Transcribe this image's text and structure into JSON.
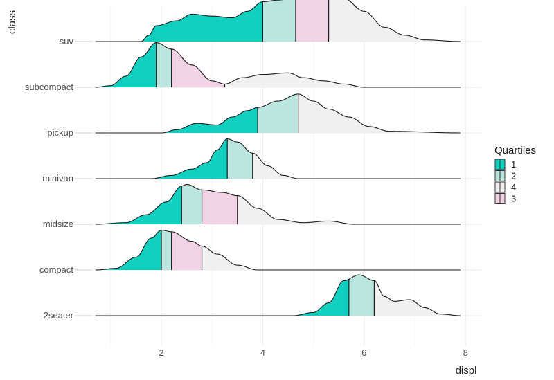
{
  "chart_data": {
    "type": "ridgeline-density",
    "title": "",
    "xlabel": "displ",
    "ylabel": "class",
    "xlim": [
      0.7,
      7.9
    ],
    "x_ticks": [
      2,
      4,
      6,
      8
    ],
    "x_tick_labels": [
      "2",
      "4",
      "6",
      "8"
    ],
    "grid": true,
    "legend": {
      "title": "Quartiles",
      "position": "right",
      "entries": [
        {
          "label": "1",
          "color": "#12D0C0"
        },
        {
          "label": "2",
          "color": "#BBE5DF"
        },
        {
          "label": "4",
          "color": "#F0F0F0"
        },
        {
          "label": "3",
          "color": "#F2D3E6"
        }
      ]
    },
    "categories": [
      "2seater",
      "compact",
      "midsize",
      "minivan",
      "pickup",
      "subcompact",
      "suv"
    ],
    "series": [
      {
        "name": "suv",
        "quartiles": [
          4.0,
          4.65,
          5.3
        ],
        "density": [
          [
            0.7,
            0
          ],
          [
            1.6,
            0
          ],
          [
            1.75,
            0.2
          ],
          [
            1.9,
            0.5
          ],
          [
            2.3,
            0.65
          ],
          [
            2.6,
            0.86
          ],
          [
            3.0,
            0.8
          ],
          [
            3.4,
            0.75
          ],
          [
            3.7,
            0.95
          ],
          [
            4.0,
            1.25
          ],
          [
            4.3,
            1.3
          ],
          [
            4.65,
            1.38
          ],
          [
            5.0,
            1.35
          ],
          [
            5.3,
            1.42
          ],
          [
            5.6,
            1.35
          ],
          [
            6.0,
            0.95
          ],
          [
            6.4,
            0.45
          ],
          [
            6.8,
            0.2
          ],
          [
            7.2,
            0.05
          ],
          [
            7.9,
            0
          ]
        ]
      },
      {
        "name": "subcompact",
        "quartiles": [
          1.9,
          2.2,
          3.25
        ],
        "density": [
          [
            0.7,
            0
          ],
          [
            1.0,
            0.05
          ],
          [
            1.3,
            0.35
          ],
          [
            1.6,
            0.95
          ],
          [
            1.9,
            1.4
          ],
          [
            2.2,
            1.2
          ],
          [
            2.6,
            0.7
          ],
          [
            3.0,
            0.2
          ],
          [
            3.25,
            0.1
          ],
          [
            3.6,
            0.3
          ],
          [
            4.0,
            0.4
          ],
          [
            4.5,
            0.45
          ],
          [
            4.8,
            0.3
          ],
          [
            5.2,
            0.2
          ],
          [
            5.6,
            0.1
          ],
          [
            6.0,
            0
          ],
          [
            7.9,
            0
          ]
        ]
      },
      {
        "name": "pickup",
        "quartiles": [
          3.9,
          4.7
        ],
        "density": [
          [
            0.7,
            0
          ],
          [
            2.0,
            0
          ],
          [
            2.3,
            0.1
          ],
          [
            2.7,
            0.3
          ],
          [
            3.1,
            0.25
          ],
          [
            3.4,
            0.5
          ],
          [
            3.7,
            0.7
          ],
          [
            3.9,
            0.8
          ],
          [
            4.3,
            1.0
          ],
          [
            4.7,
            1.22
          ],
          [
            5.0,
            1.0
          ],
          [
            5.3,
            0.75
          ],
          [
            5.7,
            0.5
          ],
          [
            6.1,
            0.2
          ],
          [
            6.5,
            0.05
          ],
          [
            7.9,
            0
          ]
        ]
      },
      {
        "name": "minivan",
        "quartiles": [
          3.3,
          3.8
        ],
        "density": [
          [
            0.7,
            0
          ],
          [
            1.8,
            0
          ],
          [
            2.2,
            0.1
          ],
          [
            2.6,
            0.3
          ],
          [
            2.9,
            0.5
          ],
          [
            3.1,
            0.9
          ],
          [
            3.3,
            1.25
          ],
          [
            3.5,
            1.15
          ],
          [
            3.8,
            0.8
          ],
          [
            4.1,
            0.4
          ],
          [
            4.4,
            0.1
          ],
          [
            4.7,
            0
          ],
          [
            7.9,
            0
          ]
        ]
      },
      {
        "name": "midsize",
        "quartiles": [
          2.4,
          2.8,
          3.5
        ],
        "density": [
          [
            0.7,
            0
          ],
          [
            1.3,
            0.05
          ],
          [
            1.7,
            0.3
          ],
          [
            2.1,
            0.7
          ],
          [
            2.4,
            1.2
          ],
          [
            2.5,
            1.25
          ],
          [
            2.8,
            1.08
          ],
          [
            3.2,
            1.0
          ],
          [
            3.5,
            0.9
          ],
          [
            3.9,
            0.5
          ],
          [
            4.3,
            0.15
          ],
          [
            4.8,
            0.05
          ],
          [
            5.3,
            0.1
          ],
          [
            5.8,
            0
          ],
          [
            7.9,
            0
          ]
        ]
      },
      {
        "name": "compact",
        "quartiles": [
          2.0,
          2.2,
          2.8
        ],
        "density": [
          [
            0.7,
            0
          ],
          [
            1.1,
            0.05
          ],
          [
            1.5,
            0.4
          ],
          [
            1.8,
            1.0
          ],
          [
            2.0,
            1.25
          ],
          [
            2.2,
            1.2
          ],
          [
            2.6,
            0.9
          ],
          [
            2.8,
            0.75
          ],
          [
            3.1,
            0.5
          ],
          [
            3.5,
            0.15
          ],
          [
            3.9,
            0
          ],
          [
            7.9,
            0
          ]
        ]
      },
      {
        "name": "2seater",
        "quartiles": [
          5.7,
          6.2
        ],
        "density": [
          [
            0.7,
            0
          ],
          [
            4.6,
            0
          ],
          [
            5.0,
            0.1
          ],
          [
            5.3,
            0.4
          ],
          [
            5.6,
            1.1
          ],
          [
            5.9,
            1.28
          ],
          [
            6.2,
            1.1
          ],
          [
            6.4,
            0.6
          ],
          [
            6.6,
            0.45
          ],
          [
            6.9,
            0.5
          ],
          [
            7.2,
            0.25
          ],
          [
            7.5,
            0.05
          ],
          [
            7.9,
            0
          ]
        ]
      }
    ]
  },
  "axes": {
    "x_title": "displ",
    "y_title": "class",
    "y_labels": [
      "suv",
      "subcompact",
      "pickup",
      "minivan",
      "midsize",
      "compact",
      "2seater"
    ],
    "x_labels": [
      "2",
      "4",
      "6",
      "8"
    ]
  },
  "legend": {
    "title": "Quartiles",
    "items": [
      {
        "label": "1",
        "color": "#12D0C0"
      },
      {
        "label": "2",
        "color": "#BBE5DF"
      },
      {
        "label": "4",
        "color": "#F0F0F0"
      },
      {
        "label": "3",
        "color": "#F2D3E6"
      }
    ]
  }
}
